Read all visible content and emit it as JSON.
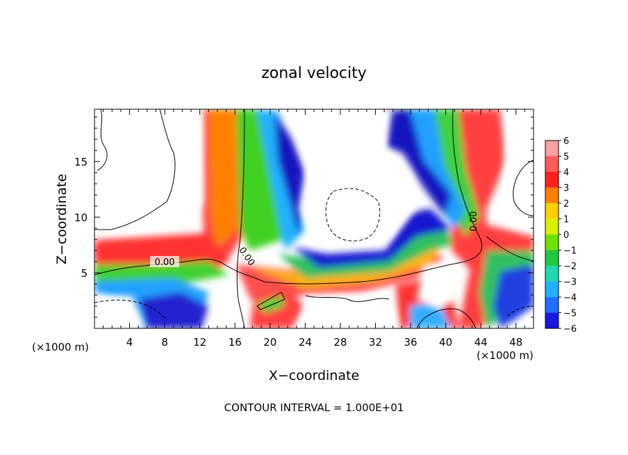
{
  "chart_data": {
    "type": "heatmap",
    "title": "zonal velocity",
    "xlabel": "X−coordinate",
    "ylabel": "Z−coordinate",
    "x_unit_left": "(×1000 m)",
    "x_unit_right": "(×1000 m)",
    "footer": "CONTOUR INTERVAL = 1.000E+01",
    "x_ticks": [
      4,
      8,
      12,
      16,
      20,
      24,
      28,
      32,
      36,
      40,
      44,
      48
    ],
    "y_ticks": [
      5,
      10,
      15
    ],
    "xlim": [
      0,
      50
    ],
    "ylim": [
      0,
      19.7
    ],
    "colorbar": {
      "ticks": [
        6,
        5,
        4,
        3,
        2,
        1,
        0,
        -1,
        -2,
        -3,
        -4,
        -5,
        -6
      ],
      "labels": [
        "6",
        "5",
        "4",
        "3",
        "2",
        "1",
        "0",
        "−1",
        "−2",
        "−3",
        "−4",
        "−5",
        "−6"
      ],
      "range": [
        -6,
        6
      ]
    },
    "contour_labels": [
      {
        "text": "0.00",
        "x": 7.8,
        "z": 5.6
      },
      {
        "text": "0.00",
        "x": 17.2,
        "z": 6.3
      },
      {
        "text": "0.00",
        "x": 43.3,
        "z": 9.8
      }
    ]
  }
}
